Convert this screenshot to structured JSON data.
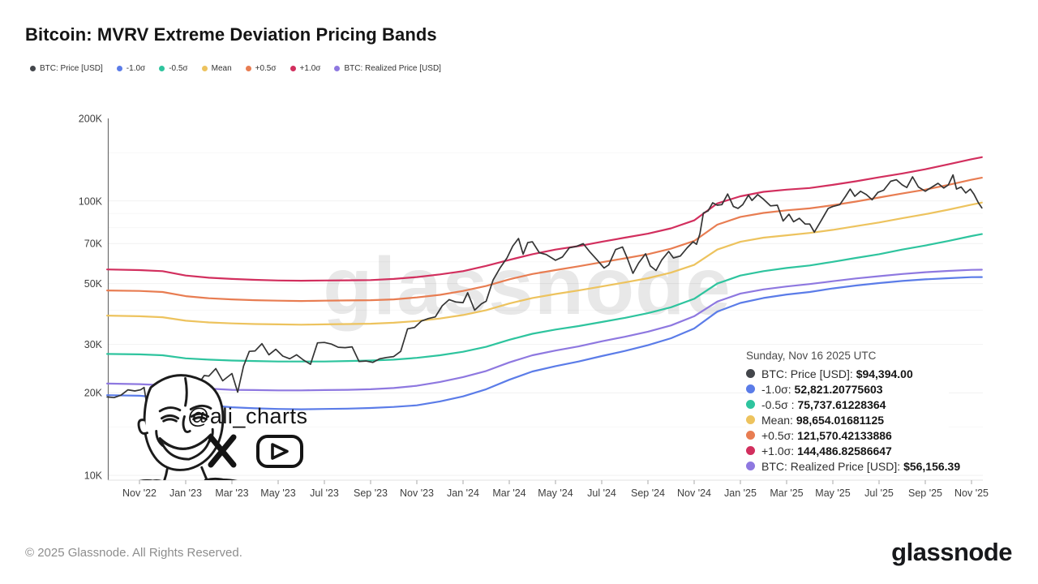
{
  "header": {
    "title": "Bitcoin: MVRV Extreme Deviation Pricing Bands"
  },
  "legend": {
    "items": [
      {
        "label": "BTC: Price [USD]",
        "color": "#43464b"
      },
      {
        "label": "-1.0σ",
        "color": "#5b7ce8"
      },
      {
        "label": "-0.5σ",
        "color": "#2ec49e"
      },
      {
        "label": "Mean",
        "color": "#edc35e"
      },
      {
        "label": "+0.5σ",
        "color": "#e87d52"
      },
      {
        "label": "+1.0σ",
        "color": "#d22f5e"
      },
      {
        "label": "BTC: Realized Price [USD]",
        "color": "#8e78e0"
      }
    ]
  },
  "tooltip": {
    "date": "Sunday, Nov 16 2025 UTC",
    "rows": [
      {
        "label": "BTC: Price [USD]:",
        "value": "$94,394.00",
        "color": "#43464b"
      },
      {
        "label": "-1.0σ:",
        "value": "52,821.20775603",
        "color": "#5b7ce8"
      },
      {
        "label": "-0.5σ :",
        "value": "75,737.61228364",
        "color": "#2ec49e"
      },
      {
        "label": "Mean:",
        "value": "98,654.01681125",
        "color": "#edc35e"
      },
      {
        "label": "+0.5σ:",
        "value": "121,570.42133886",
        "color": "#e87d52"
      },
      {
        "label": "+1.0σ:",
        "value": "144,486.82586647",
        "color": "#d22f5e"
      },
      {
        "label": "BTC: Realized Price [USD]:",
        "value": "$56,156.39",
        "color": "#8e78e0"
      }
    ]
  },
  "watermarks": {
    "glassnode": "glassnode",
    "ali_handle": "@ali_charts"
  },
  "footer": {
    "copyright": "© 2025 Glassnode. All Rights Reserved.",
    "brand": "glassnode"
  },
  "chart_data": {
    "type": "line",
    "title": "Bitcoin: MVRV Extreme Deviation Pricing Bands",
    "x_unit": "months since Nov 2022 (0 = Nov '22)",
    "y_unit": "USD thousands, log scale",
    "ylim_k": [
      10,
      200
    ],
    "grid": "horizontal only",
    "legend_position": "top-left",
    "x_ticks": [
      {
        "m": 0,
        "label": "Nov '22"
      },
      {
        "m": 2,
        "label": "Jan '23"
      },
      {
        "m": 4,
        "label": "Mar '23"
      },
      {
        "m": 6,
        "label": "May '23"
      },
      {
        "m": 8,
        "label": "Jul '23"
      },
      {
        "m": 10,
        "label": "Sep '23"
      },
      {
        "m": 12,
        "label": "Nov '23"
      },
      {
        "m": 14,
        "label": "Jan '24"
      },
      {
        "m": 16,
        "label": "Mar '24"
      },
      {
        "m": 18,
        "label": "May '24"
      },
      {
        "m": 20,
        "label": "Jul '24"
      },
      {
        "m": 22,
        "label": "Sep '24"
      },
      {
        "m": 24,
        "label": "Nov '24"
      },
      {
        "m": 26,
        "label": "Jan '25"
      },
      {
        "m": 28,
        "label": "Mar '25"
      },
      {
        "m": 30,
        "label": "May '25"
      },
      {
        "m": 32,
        "label": "Jul '25"
      },
      {
        "m": 34,
        "label": "Sep '25"
      },
      {
        "m": 36,
        "label": "Nov '25"
      }
    ],
    "y_ticks_k": [
      {
        "v": 200,
        "label": "200K"
      },
      {
        "v": 100,
        "label": "100K"
      },
      {
        "v": 70,
        "label": "70K"
      },
      {
        "v": 50,
        "label": "50K"
      },
      {
        "v": 30,
        "label": "30K"
      },
      {
        "v": 20,
        "label": "20K"
      },
      {
        "v": 10,
        "label": "10K"
      }
    ],
    "y_minor_gridlines_k": [
      150,
      90,
      80,
      60,
      40,
      15
    ],
    "band_months": [
      -1.4,
      0,
      1,
      2,
      3,
      4,
      5,
      6,
      7,
      8,
      9,
      10,
      11,
      12,
      13,
      14,
      15,
      16,
      17,
      18,
      19,
      20,
      21,
      22,
      23,
      24,
      25,
      26,
      27,
      28,
      29,
      30,
      31,
      32,
      33,
      34,
      35,
      36,
      36.45
    ],
    "series": [
      {
        "name": "-1.0σ",
        "color": "#5b7ce8",
        "width": 2.2,
        "values_k": [
          19.6,
          19.5,
          19.2,
          18.4,
          18,
          17.7,
          17.55,
          17.45,
          17.4,
          17.45,
          17.5,
          17.6,
          17.75,
          18,
          18.6,
          19.4,
          20.6,
          22.3,
          23.9,
          25,
          26,
          27.2,
          28.4,
          29.8,
          31.6,
          34.3,
          39.5,
          42.5,
          44.3,
          45.6,
          46.6,
          48,
          49.2,
          50.2,
          51.1,
          51.8,
          52.3,
          52.75,
          52.82
        ]
      },
      {
        "name": "BTC: Realized Price [USD]",
        "color": "#8e78e0",
        "width": 2.2,
        "values_k": [
          21.6,
          21.5,
          21.3,
          20.9,
          20.7,
          20.5,
          20.45,
          20.4,
          20.4,
          20.45,
          20.5,
          20.6,
          20.8,
          21.2,
          21.9,
          22.8,
          24,
          25.8,
          27.4,
          28.5,
          29.5,
          30.8,
          32,
          33.4,
          35.2,
          38,
          43,
          46,
          47.6,
          48.8,
          49.8,
          51,
          52.2,
          53.2,
          54.2,
          55,
          55.6,
          56.1,
          56.16
        ]
      },
      {
        "name": "-0.5σ",
        "color": "#2ec49e",
        "width": 2.2,
        "values_k": [
          27.7,
          27.6,
          27.4,
          26.7,
          26.4,
          26.2,
          26.1,
          26,
          26,
          26,
          26.1,
          26.2,
          26.4,
          26.8,
          27.4,
          28.2,
          29.4,
          31.2,
          32.8,
          34,
          35,
          36.2,
          37.5,
          39,
          41,
          44,
          50,
          53.5,
          55.5,
          57,
          58.2,
          60,
          62,
          64,
          66.5,
          68.8,
          71.5,
          74.5,
          75.74
        ]
      },
      {
        "name": "Mean",
        "color": "#edc35e",
        "width": 2.2,
        "values_k": [
          38.2,
          38,
          37.7,
          36.6,
          36.1,
          35.8,
          35.6,
          35.5,
          35.4,
          35.5,
          35.6,
          35.7,
          36,
          36.5,
          37.3,
          38.4,
          40,
          42.3,
          44.3,
          45.8,
          47.2,
          48.8,
          50.5,
          52.3,
          54.8,
          58.5,
          66.5,
          71,
          73.5,
          75,
          76.5,
          78.5,
          81,
          83.5,
          86.5,
          89.5,
          93,
          97,
          98.65
        ]
      },
      {
        "name": "+0.5σ",
        "color": "#e87d52",
        "width": 2.2,
        "values_k": [
          47.2,
          47,
          46.6,
          45,
          44.2,
          43.8,
          43.5,
          43.3,
          43.2,
          43.3,
          43.4,
          43.5,
          43.8,
          44.5,
          45.5,
          47,
          49,
          51.8,
          54.2,
          56,
          57.8,
          59.8,
          61.8,
          64,
          67,
          71.5,
          82,
          87.5,
          90.5,
          92.5,
          94,
          96.5,
          99.5,
          103,
          106.5,
          110,
          114.5,
          119.5,
          121.57
        ]
      },
      {
        "name": "+1.0σ",
        "color": "#d22f5e",
        "width": 2.2,
        "values_k": [
          56.3,
          56,
          55.5,
          53.5,
          52.5,
          52,
          51.6,
          51.3,
          51.2,
          51.3,
          51.4,
          51.5,
          52,
          52.8,
          54,
          55.5,
          58,
          61,
          64,
          66.5,
          68.5,
          71,
          73.5,
          76,
          79.5,
          85,
          98,
          104,
          108,
          110,
          111.5,
          114.5,
          118,
          122,
          126,
          130.5,
          136,
          142,
          144.49
        ]
      },
      {
        "name": "BTC: Price [USD]",
        "color": "#343434",
        "width": 1.7,
        "x": [
          -1.4,
          -1.1,
          -0.8,
          -0.5,
          -0.2,
          0.05,
          0.2,
          0.32,
          0.45,
          0.6,
          0.8,
          1,
          1.3,
          1.6,
          2,
          2.2,
          2.5,
          2.8,
          3,
          3.3,
          3.6,
          4,
          4.25,
          4.5,
          4.75,
          5,
          5.3,
          5.6,
          5.9,
          6.2,
          6.5,
          6.8,
          7.1,
          7.4,
          7.7,
          8,
          8.3,
          8.6,
          8.9,
          9.2,
          9.5,
          9.8,
          10.1,
          10.4,
          10.7,
          11,
          11.3,
          11.6,
          11.9,
          12.2,
          12.5,
          12.8,
          13.1,
          13.4,
          13.7,
          14,
          14.2,
          14.5,
          14.8,
          15,
          15.3,
          15.6,
          15.9,
          16.15,
          16.4,
          16.6,
          16.8,
          17,
          17.3,
          17.6,
          18,
          18.3,
          18.6,
          18.9,
          19.2,
          19.5,
          19.8,
          20.1,
          20.3,
          20.6,
          20.9,
          21.1,
          21.35,
          21.6,
          21.9,
          22.1,
          22.35,
          22.6,
          22.9,
          23.1,
          23.4,
          23.7,
          23.95,
          24.1,
          24.25,
          24.4,
          24.6,
          24.8,
          25,
          25.2,
          25.45,
          25.7,
          25.9,
          26.1,
          26.35,
          26.5,
          26.75,
          27,
          27.3,
          27.6,
          27.85,
          28.1,
          28.3,
          28.55,
          28.8,
          29,
          29.2,
          29.5,
          29.8,
          30,
          30.3,
          30.55,
          30.75,
          30.95,
          31.2,
          31.45,
          31.7,
          31.95,
          32.2,
          32.5,
          32.75,
          33,
          33.2,
          33.45,
          33.7,
          34,
          34.3,
          34.55,
          34.8,
          35,
          35.2,
          35.35,
          35.55,
          35.75,
          35.95,
          36.1,
          36.3,
          36.45
        ],
        "values_k": [
          19.3,
          19.2,
          19.6,
          20.5,
          20.3,
          20.5,
          20.9,
          18,
          16.3,
          16.6,
          17.1,
          17.2,
          16.9,
          16.6,
          16.7,
          19,
          21.2,
          23.1,
          23,
          24.5,
          22.1,
          23.5,
          20.1,
          25,
          28.3,
          28.4,
          30.2,
          27.5,
          28.8,
          27.2,
          26.6,
          27.5,
          26.3,
          25.4,
          30.4,
          30.5,
          30.1,
          29.3,
          29.2,
          29.4,
          26,
          26.1,
          25.8,
          26.6,
          26.9,
          27.1,
          28.3,
          34.2,
          34.6,
          36.5,
          37.3,
          37.8,
          41.5,
          43.7,
          42.8,
          42.6,
          46.3,
          40,
          42.2,
          43.1,
          51.5,
          57,
          62,
          68.5,
          73,
          64,
          70.5,
          71,
          64.8,
          63.8,
          60.8,
          62.5,
          67.5,
          68.3,
          69.9,
          65,
          61,
          57,
          58.5,
          66.5,
          68,
          62,
          54.5,
          59.5,
          64.2,
          58,
          55.8,
          61,
          65.5,
          62,
          63,
          67.5,
          71,
          69.5,
          76,
          90.5,
          92,
          98.5,
          96.5,
          97,
          106,
          95.5,
          94,
          97,
          105,
          100.5,
          105.5,
          101.5,
          96,
          96.5,
          84.5,
          89.5,
          84,
          86.5,
          82.5,
          82.4,
          77,
          85,
          94,
          95.5,
          97,
          104,
          110.5,
          104,
          108.5,
          105.5,
          101,
          107.5,
          109.5,
          118,
          119.5,
          114.5,
          112,
          122.5,
          112.5,
          108.5,
          112.5,
          116,
          111.5,
          114.5,
          124.5,
          110.5,
          112.5,
          107,
          110.5,
          106,
          98.5,
          94.394
        ]
      }
    ]
  }
}
